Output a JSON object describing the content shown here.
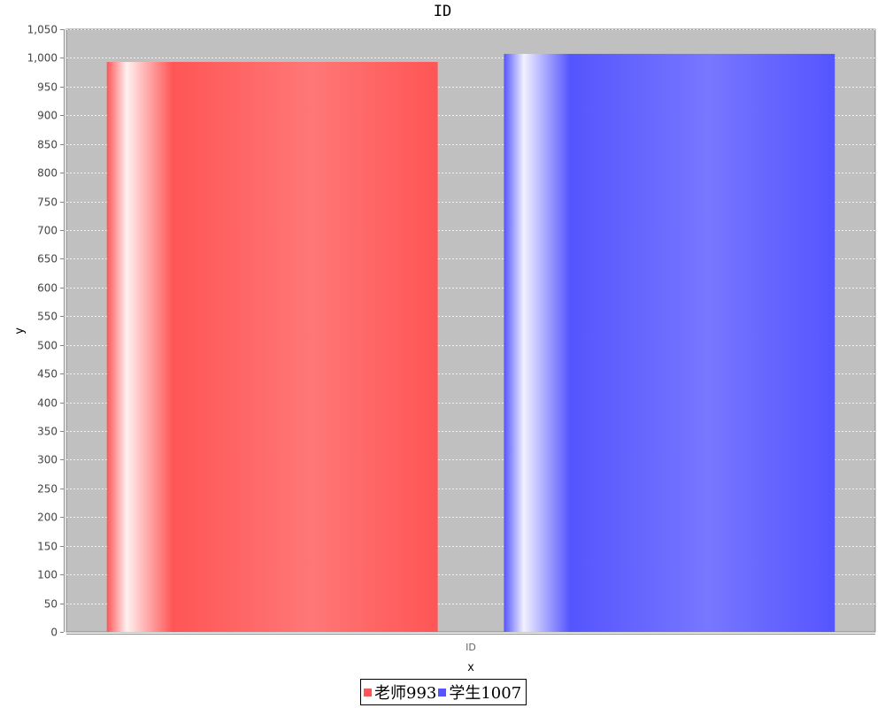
{
  "chart_data": {
    "type": "bar",
    "title": "ID",
    "xlabel": "x",
    "ylabel": "y",
    "categories": [
      "ID"
    ],
    "series": [
      {
        "name": "老师993",
        "values": [
          993
        ],
        "color": "#ff5555"
      },
      {
        "name": "学生1007",
        "values": [
          1007
        ],
        "color": "#5555ff"
      }
    ],
    "ylim": [
      0,
      1050
    ],
    "ytick_step": 50,
    "grid": true,
    "plot_background": "#c0c0c0",
    "legend_position": "bottom"
  }
}
